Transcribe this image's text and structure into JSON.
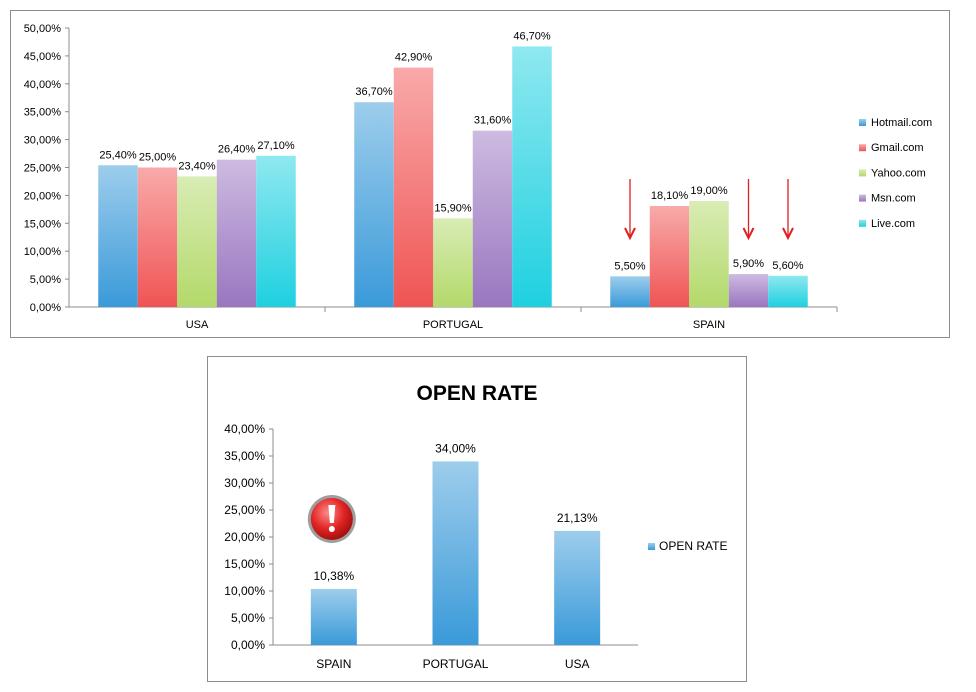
{
  "chart_data": [
    {
      "type": "bar",
      "title": "",
      "xlabel": "",
      "ylabel": "",
      "categories": [
        "USA",
        "PORTUGAL",
        "SPAIN"
      ],
      "ylim": [
        0,
        50
      ],
      "ytick_step": 5,
      "ytick_labels": [
        "0,00%",
        "5,00%",
        "10,00%",
        "15,00%",
        "20,00%",
        "25,00%",
        "30,00%",
        "35,00%",
        "40,00%",
        "45,00%",
        "50,00%"
      ],
      "legend_position": "right",
      "grid": false,
      "series": [
        {
          "name": "Hotmail.com",
          "color": "#3a9ad9",
          "values": [
            25.4,
            36.7,
            5.5
          ],
          "labels": [
            "25,40%",
            "36,70%",
            "5,50%"
          ]
        },
        {
          "name": "Gmail.com",
          "color": "#f05454",
          "values": [
            25.0,
            42.9,
            18.1
          ],
          "labels": [
            "25,00%",
            "42,90%",
            "18,10%"
          ]
        },
        {
          "name": "Yahoo.com",
          "color": "#b3d96a",
          "values": [
            23.4,
            15.9,
            19.0
          ],
          "labels": [
            "23,40%",
            "15,90%",
            "19,00%"
          ]
        },
        {
          "name": "Msn.com",
          "color": "#9a76c0",
          "values": [
            26.4,
            31.6,
            5.9
          ],
          "labels": [
            "26,40%",
            "31,60%",
            "5,90%"
          ]
        },
        {
          "name": "Live.com",
          "color": "#1fd0e0",
          "values": [
            27.1,
            46.7,
            5.6
          ],
          "labels": [
            "27,10%",
            "46,70%",
            "5,60%"
          ]
        }
      ],
      "annotations": [
        {
          "type": "down-arrow",
          "color": "#e02020",
          "category": "SPAIN",
          "series": "Hotmail.com"
        },
        {
          "type": "down-arrow",
          "color": "#e02020",
          "category": "SPAIN",
          "series": "Msn.com"
        },
        {
          "type": "down-arrow",
          "color": "#e02020",
          "category": "SPAIN",
          "series": "Live.com"
        }
      ]
    },
    {
      "type": "bar",
      "title": "OPEN RATE",
      "xlabel": "",
      "ylabel": "",
      "categories": [
        "SPAIN",
        "PORTUGAL",
        "USA"
      ],
      "ylim": [
        0,
        40
      ],
      "ytick_step": 5,
      "ytick_labels": [
        "0,00%",
        "5,00%",
        "10,00%",
        "15,00%",
        "20,00%",
        "25,00%",
        "30,00%",
        "35,00%",
        "40,00%"
      ],
      "legend_position": "right",
      "grid": false,
      "series": [
        {
          "name": "OPEN RATE",
          "color": "#3a9ad9",
          "values": [
            10.38,
            34.0,
            21.13
          ],
          "labels": [
            "10,38%",
            "34,00%",
            "21,13%"
          ]
        }
      ],
      "annotations": [
        {
          "type": "warning-icon",
          "color": "#d81e1e",
          "category": "SPAIN"
        }
      ]
    }
  ]
}
